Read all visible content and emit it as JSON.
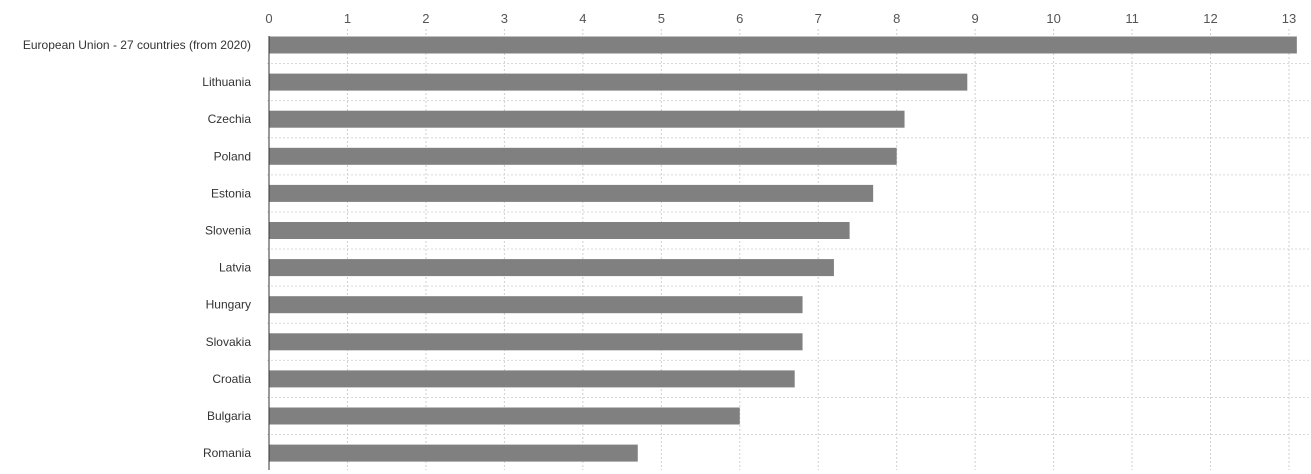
{
  "chart_data": {
    "type": "bar",
    "orientation": "horizontal",
    "categories": [
      "European Union - 27 countries (from 2020)",
      "Lithuania",
      "Czechia",
      "Poland",
      "Estonia",
      "Slovenia",
      "Latvia",
      "Hungary",
      "Slovakia",
      "Croatia",
      "Bulgaria",
      "Romania"
    ],
    "series": [
      {
        "values": [
          13.1,
          8.9,
          8.1,
          8.0,
          7.7,
          7.4,
          7.2,
          6.8,
          6.8,
          6.7,
          6.0,
          4.7
        ]
      }
    ],
    "xlim": [
      0,
      13
    ],
    "xticks": [
      "0",
      "1",
      "2",
      "3",
      "4",
      "5",
      "6",
      "7",
      "8",
      "9",
      "10",
      "11",
      "12",
      "13"
    ],
    "xaxis_position": "top",
    "grid": true,
    "legend": "none",
    "bar_color": "#808080"
  }
}
